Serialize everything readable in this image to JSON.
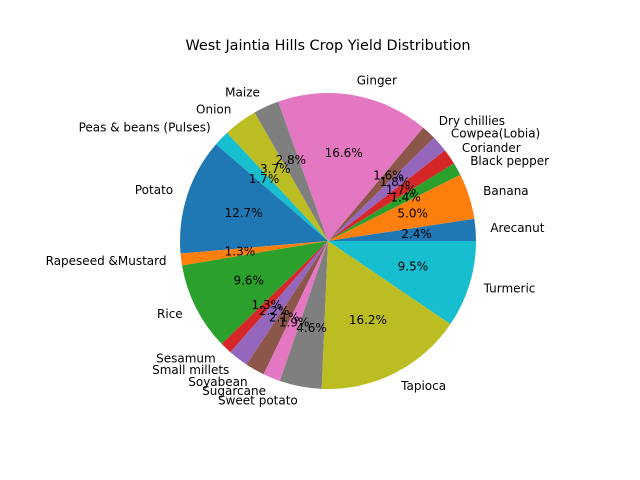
{
  "chart_data": {
    "type": "pie",
    "title": "West Jaintia Hills Crop Yield Distribution",
    "slices": [
      {
        "label": "Arecanut",
        "value": 2.4,
        "pct_label": "2.4%",
        "color": "#1f77b4"
      },
      {
        "label": "Banana",
        "value": 5.0,
        "pct_label": "5.0%",
        "color": "#ff7f0e"
      },
      {
        "label": "Black pepper",
        "value": 1.4,
        "pct_label": "1.4%",
        "color": "#2ca02c"
      },
      {
        "label": "Coriander",
        "value": 1.7,
        "pct_label": "1.7%",
        "color": "#d62728"
      },
      {
        "label": "Cowpea(Lobia)",
        "value": 1.8,
        "pct_label": "1.8%",
        "color": "#9467bd"
      },
      {
        "label": "Dry chillies",
        "value": 1.6,
        "pct_label": "1.6%",
        "color": "#8c564b"
      },
      {
        "label": "Ginger",
        "value": 16.6,
        "pct_label": "16.6%",
        "color": "#e377c2"
      },
      {
        "label": "Maize",
        "value": 2.8,
        "pct_label": "2.8%",
        "color": "#7f7f7f"
      },
      {
        "label": "Onion",
        "value": 3.7,
        "pct_label": "3.7%",
        "color": "#bcbd22"
      },
      {
        "label": "Peas & beans (Pulses)",
        "value": 1.7,
        "pct_label": "1.7%",
        "color": "#17becf"
      },
      {
        "label": "Potato",
        "value": 12.7,
        "pct_label": "12.7%",
        "color": "#1f77b4"
      },
      {
        "label": "Rapeseed &Mustard",
        "value": 1.3,
        "pct_label": "1.3%",
        "color": "#ff7f0e"
      },
      {
        "label": "Rice",
        "value": 9.6,
        "pct_label": "9.6%",
        "color": "#2ca02c"
      },
      {
        "label": "Sesamum",
        "value": 1.3,
        "pct_label": "1.3%",
        "color": "#d62728"
      },
      {
        "label": "Small millets",
        "value": 2.2,
        "pct_label": "2.2%",
        "color": "#9467bd"
      },
      {
        "label": "Soyabean",
        "value": 2.1,
        "pct_label": "2.1%",
        "color": "#8c564b"
      },
      {
        "label": "Sugarcane",
        "value": 1.9,
        "pct_label": "1.9%",
        "color": "#e377c2"
      },
      {
        "label": "Sweet potato",
        "value": 4.6,
        "pct_label": "4.6%",
        "color": "#7f7f7f"
      },
      {
        "label": "Tapioca",
        "value": 16.2,
        "pct_label": "16.2%",
        "color": "#bcbd22"
      },
      {
        "label": "Turmeric",
        "value": 9.5,
        "pct_label": "9.5%",
        "color": "#17becf"
      }
    ],
    "start_angle_deg": 0,
    "direction": "counterclockwise",
    "legend": "none"
  }
}
